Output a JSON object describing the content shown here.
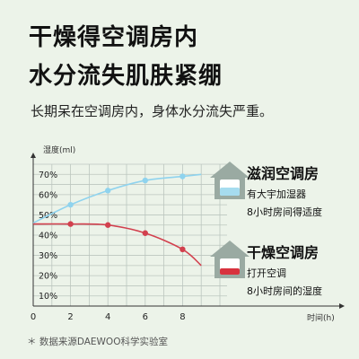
{
  "header": {
    "title_line1": "干燥得空调房内",
    "title_line2": "水分流失肌肤紧绷",
    "subtitle": "长期呆在空调房内，身体水分流失严重。"
  },
  "legend": {
    "humid": {
      "title": "滋润空调房",
      "line1": "有大宇加湿器",
      "line2": "8小时房间得适度"
    },
    "dry": {
      "title": "干燥空调房",
      "line1": "打开空调",
      "line2": "8小时房间的湿度"
    }
  },
  "footnote": "＊ 数据来源DAEWOO科学实验室",
  "colors": {
    "background": "#ecf3e9",
    "humid_line": "#8fd3ee",
    "dry_line": "#d2404e",
    "house": "#9aaaa2",
    "humid_water": "#a6dcef",
    "dry_fill": "#d8323e",
    "grid": "#bcc6bf"
  },
  "chart_data": {
    "type": "line",
    "ylabel": "湿度(ml)",
    "xlabel": "时间(h)",
    "x_ticks": [
      "0",
      "2",
      "4",
      "6",
      "8"
    ],
    "y_ticks": [
      "10%",
      "20%",
      "30%",
      "40%",
      "50%",
      "60%",
      "70%"
    ],
    "xlim": [
      0,
      10
    ],
    "ylim": [
      5,
      75
    ],
    "grid": true,
    "series": [
      {
        "key": "humid",
        "x": [
          2,
          4,
          6,
          8
        ],
        "y": [
          55,
          62,
          67,
          69
        ],
        "curve_start": 46,
        "curve_end": 70
      },
      {
        "key": "dry",
        "x": [
          2,
          4,
          6,
          8
        ],
        "y": [
          45.5,
          45,
          41,
          33
        ],
        "curve_start": 45.5,
        "curve_end": 25
      }
    ]
  }
}
